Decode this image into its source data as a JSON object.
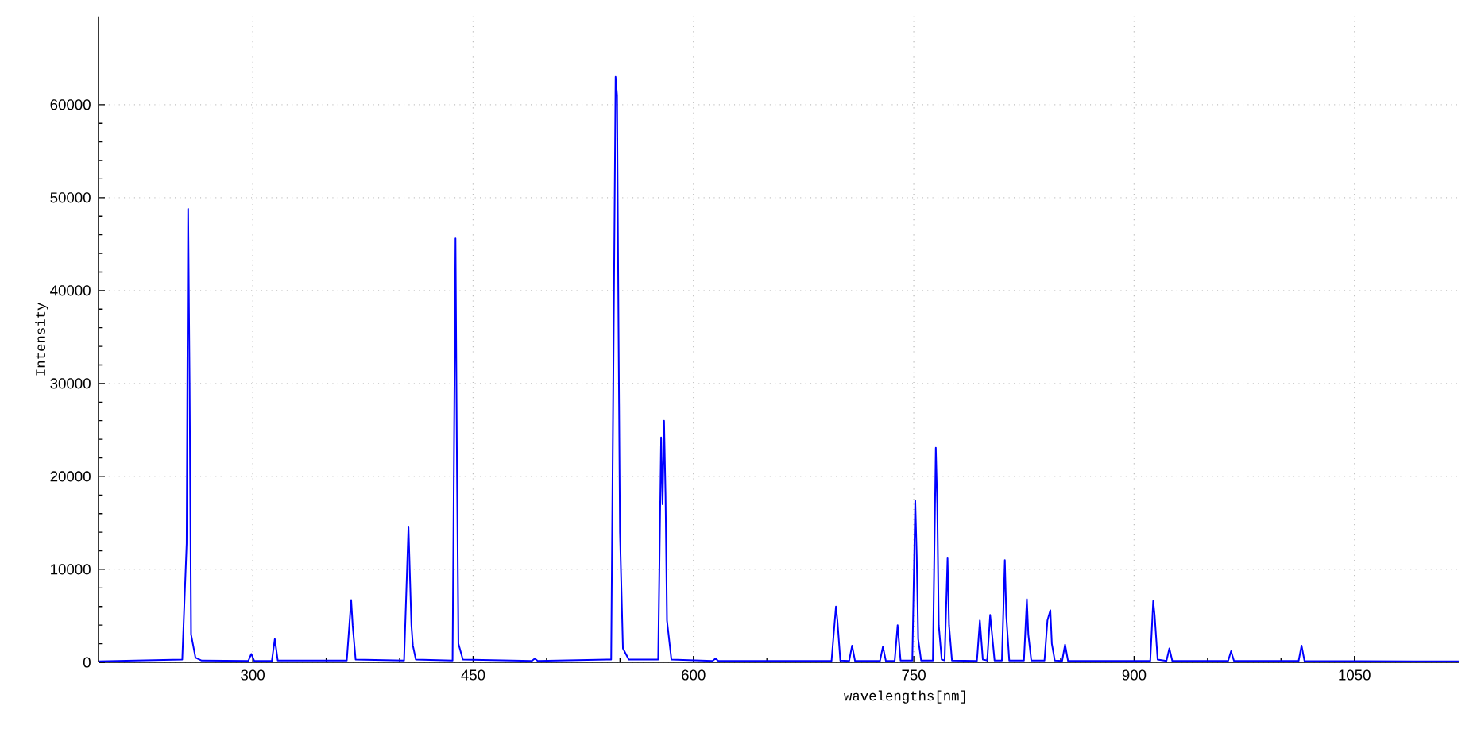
{
  "chart_data": {
    "type": "line",
    "xlabel": "wavelengths[nm]",
    "ylabel": "Intensity",
    "xlim": [
      195,
      1121
    ],
    "ylim": [
      0,
      69500
    ],
    "xticks": [
      300,
      450,
      600,
      750,
      900,
      1050
    ],
    "yticks": [
      0,
      10000,
      20000,
      30000,
      40000,
      50000,
      60000
    ],
    "grid": true,
    "marker": "none",
    "line_style": "solid",
    "series": [
      {
        "color": "#0000ff",
        "x": [
          195,
          252,
          255,
          256,
          257,
          258,
          261,
          265,
          297,
          299,
          301,
          313,
          315,
          317,
          364,
          367,
          368,
          370,
          403,
          406,
          408,
          409,
          411,
          436,
          438,
          439,
          440,
          443,
          490,
          492,
          494,
          544,
          547,
          548,
          549,
          550,
          552,
          556,
          576,
          578,
          579,
          580,
          581,
          582,
          585,
          613,
          615,
          617,
          694,
          697,
          698,
          700,
          706,
          708,
          710,
          727,
          729,
          731,
          737,
          739,
          741,
          749,
          751,
          752,
          753,
          755,
          763,
          765,
          766,
          767,
          769,
          771,
          773,
          774,
          776,
          793,
          795,
          797,
          800,
          802,
          803,
          805,
          810,
          812,
          813,
          815,
          825,
          827,
          828,
          830,
          839,
          841,
          843,
          844,
          846,
          851,
          853,
          855,
          911,
          913,
          914,
          916,
          922,
          924,
          926,
          964,
          966,
          968,
          1012,
          1014,
          1016,
          1121
        ],
        "values": [
          100,
          300,
          12800,
          48800,
          30000,
          3000,
          500,
          200,
          150,
          900,
          150,
          150,
          2500,
          200,
          200,
          6700,
          4000,
          300,
          200,
          14600,
          4000,
          1800,
          300,
          200,
          45600,
          21000,
          2000,
          300,
          150,
          400,
          150,
          300,
          63000,
          61000,
          36000,
          14000,
          1500,
          300,
          300,
          24200,
          17000,
          26000,
          18000,
          4500,
          300,
          150,
          400,
          150,
          150,
          6000,
          4500,
          200,
          150,
          1800,
          150,
          150,
          1700,
          150,
          150,
          4000,
          200,
          200,
          17400,
          11500,
          2500,
          200,
          200,
          23100,
          17000,
          4000,
          300,
          200,
          11200,
          4000,
          200,
          150,
          4500,
          300,
          200,
          5100,
          3500,
          200,
          200,
          11000,
          5000,
          200,
          200,
          6800,
          3000,
          200,
          200,
          4500,
          5600,
          2000,
          200,
          150,
          1900,
          150,
          150,
          6600,
          5000,
          300,
          150,
          1500,
          150,
          150,
          1200,
          150,
          150,
          1800,
          150,
          100
        ]
      }
    ]
  }
}
